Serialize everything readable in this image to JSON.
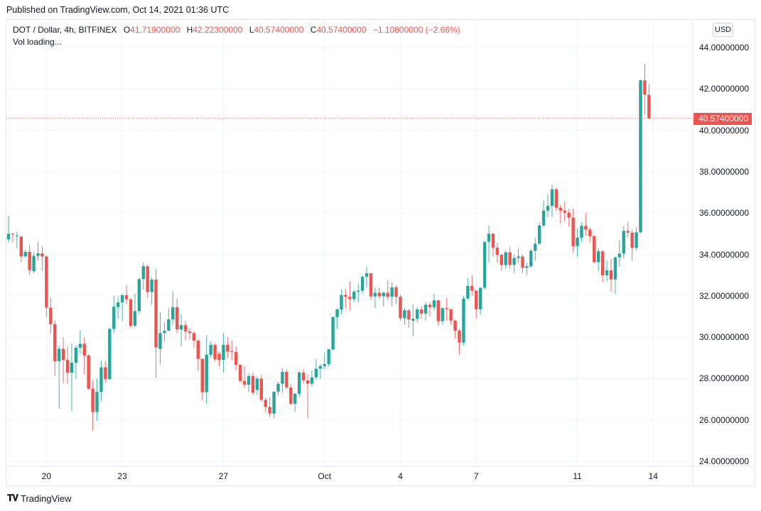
{
  "published": "Published on TradingView.com, Oct 14, 2021 01:36 UTC",
  "legend": {
    "symbol": "DOT / Dollar, 4h, BITFINEX",
    "o_label": "O",
    "o": "41.71900000",
    "h_label": "H",
    "h": "42.22300000",
    "l_label": "L",
    "l": "40.57400000",
    "c_label": "C",
    "c": "40.57400000",
    "change": "−1.10800000 (−2.66%)",
    "vol": "Vol loading..."
  },
  "currency_button": "USD",
  "last_price_label": "40.57400000",
  "footer": {
    "logo": "17",
    "brand": "TradingView"
  },
  "colors": {
    "up": "#26a69a",
    "down": "#ef5350",
    "grid": "#f0f3fa"
  },
  "chart_data": {
    "type": "candlestick",
    "interval": "4h",
    "first_candle_time": "2021-09-18 12:00",
    "ylim": [
      23.6,
      45.3
    ],
    "grid": true,
    "last_price": 40.574,
    "y_ticks": [
      "24.00000000",
      "26.00000000",
      "28.00000000",
      "30.00000000",
      "32.00000000",
      "34.00000000",
      "36.00000000",
      "38.00000000",
      "40.00000000",
      "42.00000000",
      "44.00000000"
    ],
    "x_ticks": [
      {
        "label": "20",
        "time": "2021-09-20 00:00"
      },
      {
        "label": "23",
        "time": "2021-09-23 00:00"
      },
      {
        "label": "27",
        "time": "2021-09-27 00:00"
      },
      {
        "label": "Oct",
        "time": "2021-10-01 00:00"
      },
      {
        "label": "4",
        "time": "2021-10-04 00:00"
      },
      {
        "label": "7",
        "time": "2021-10-07 00:00"
      },
      {
        "label": "11",
        "time": "2021-10-11 00:00"
      },
      {
        "label": "14",
        "time": "2021-10-14 00:00"
      }
    ],
    "ohlc": [
      [
        34.73,
        35.87,
        34.56,
        35.0
      ],
      [
        35.0,
        35.05,
        34.58,
        34.98
      ],
      [
        34.9,
        35.1,
        34.3,
        34.92
      ],
      [
        34.86,
        34.9,
        33.63,
        33.91
      ],
      [
        33.91,
        34.22,
        33.85,
        34.12
      ],
      [
        34.12,
        34.46,
        33.02,
        33.24
      ],
      [
        33.19,
        34.12,
        33.08,
        33.93
      ],
      [
        33.93,
        34.6,
        33.7,
        34.05
      ],
      [
        34.05,
        34.4,
        33.2,
        33.9
      ],
      [
        33.9,
        33.95,
        30.97,
        31.43
      ],
      [
        31.43,
        31.9,
        30.17,
        30.63
      ],
      [
        30.63,
        30.81,
        28.15,
        28.84
      ],
      [
        28.84,
        29.6,
        26.55,
        29.44
      ],
      [
        29.44,
        30.0,
        27.77,
        28.9
      ],
      [
        28.9,
        29.55,
        27.75,
        28.28
      ],
      [
        28.28,
        29.7,
        26.43,
        28.77
      ],
      [
        28.77,
        29.6,
        28.0,
        29.49
      ],
      [
        29.49,
        30.35,
        29.2,
        29.68
      ],
      [
        29.68,
        30.0,
        28.2,
        29.11
      ],
      [
        29.11,
        29.2,
        27.45,
        27.51
      ],
      [
        27.51,
        27.9,
        25.49,
        26.38
      ],
      [
        26.38,
        28.0,
        25.95,
        27.35
      ],
      [
        27.35,
        28.85,
        26.9,
        28.54
      ],
      [
        28.54,
        28.85,
        27.8,
        27.97
      ],
      [
        27.97,
        30.45,
        27.93,
        30.4
      ],
      [
        30.4,
        32.0,
        30.2,
        31.47
      ],
      [
        31.45,
        31.97,
        30.9,
        31.68
      ],
      [
        31.68,
        32.1,
        30.78,
        32.03
      ],
      [
        32.03,
        32.52,
        31.6,
        31.83
      ],
      [
        31.83,
        31.9,
        30.43,
        30.55
      ],
      [
        30.55,
        32.1,
        30.5,
        31.26
      ],
      [
        31.26,
        32.87,
        31.1,
        32.81
      ],
      [
        32.81,
        33.6,
        32.3,
        33.43
      ],
      [
        33.43,
        33.5,
        31.9,
        32.18
      ],
      [
        32.18,
        32.9,
        31.55,
        32.78
      ],
      [
        32.78,
        33.3,
        28.03,
        29.51
      ],
      [
        29.43,
        31.2,
        28.7,
        30.2
      ],
      [
        30.2,
        30.73,
        29.78,
        30.31
      ],
      [
        30.31,
        31.4,
        30.3,
        30.86
      ],
      [
        30.86,
        32.21,
        30.6,
        31.45
      ],
      [
        31.45,
        31.87,
        30.2,
        30.37
      ],
      [
        30.37,
        31.1,
        29.55,
        30.58
      ],
      [
        30.58,
        30.8,
        29.85,
        30.28
      ],
      [
        30.28,
        30.45,
        29.9,
        30.2
      ],
      [
        30.2,
        30.3,
        29.5,
        29.83
      ],
      [
        29.83,
        29.9,
        28.37,
        28.95
      ],
      [
        28.95,
        29.0,
        26.95,
        27.34
      ],
      [
        27.34,
        30.1,
        26.78,
        29.15
      ],
      [
        29.15,
        29.8,
        29.0,
        29.63
      ],
      [
        29.63,
        29.7,
        28.85,
        28.93
      ],
      [
        29.2,
        29.3,
        28.6,
        28.9
      ],
      [
        28.9,
        30.2,
        28.3,
        29.63
      ],
      [
        29.63,
        30.0,
        29.0,
        29.3
      ],
      [
        29.32,
        29.85,
        28.9,
        29.28
      ],
      [
        29.28,
        29.55,
        28.4,
        28.66
      ],
      [
        28.66,
        28.7,
        27.8,
        27.89
      ],
      [
        27.89,
        28.6,
        27.55,
        27.7
      ],
      [
        27.7,
        28.25,
        27.35,
        28.12
      ],
      [
        28.12,
        28.3,
        27.2,
        27.32
      ],
      [
        27.45,
        28.1,
        27.2,
        28.0
      ],
      [
        28.0,
        28.2,
        26.9,
        26.97
      ],
      [
        26.97,
        27.1,
        26.37,
        26.63
      ],
      [
        26.63,
        27.1,
        26.12,
        26.31
      ],
      [
        26.31,
        27.37,
        26.1,
        27.37
      ],
      [
        27.37,
        27.85,
        27.2,
        27.75
      ],
      [
        27.75,
        28.5,
        27.3,
        28.32
      ],
      [
        28.32,
        28.45,
        27.5,
        27.57
      ],
      [
        27.57,
        27.75,
        26.75,
        26.78
      ],
      [
        26.78,
        27.3,
        26.4,
        27.26
      ],
      [
        27.26,
        28.35,
        27.1,
        28.29
      ],
      [
        28.29,
        28.45,
        27.75,
        27.91
      ],
      [
        27.91,
        28.2,
        26.08,
        27.75
      ],
      [
        27.75,
        28.4,
        27.6,
        28.06
      ],
      [
        28.06,
        28.95,
        27.95,
        28.48
      ],
      [
        28.48,
        28.7,
        28.0,
        28.6
      ],
      [
        28.6,
        29.25,
        28.45,
        28.7
      ],
      [
        28.7,
        29.45,
        28.6,
        29.41
      ],
      [
        29.41,
        31.0,
        29.35,
        30.97
      ],
      [
        30.97,
        31.4,
        30.4,
        31.34
      ],
      [
        31.34,
        32.3,
        31.1,
        32.04
      ],
      [
        32.04,
        32.3,
        31.4,
        31.95
      ],
      [
        31.95,
        32.7,
        31.3,
        31.84
      ],
      [
        31.84,
        32.3,
        31.7,
        32.2
      ],
      [
        32.2,
        32.6,
        31.7,
        32.25
      ],
      [
        32.25,
        32.97,
        32.1,
        32.92
      ],
      [
        32.92,
        33.4,
        32.4,
        33.09
      ],
      [
        33.09,
        33.1,
        31.8,
        31.97
      ],
      [
        31.97,
        32.4,
        31.4,
        32.15
      ],
      [
        32.15,
        32.4,
        31.85,
        31.98
      ],
      [
        31.98,
        32.2,
        31.5,
        32.15
      ],
      [
        32.15,
        32.75,
        31.8,
        31.95
      ],
      [
        31.95,
        32.65,
        31.5,
        32.41
      ],
      [
        32.41,
        32.5,
        31.6,
        31.95
      ],
      [
        31.95,
        32.05,
        30.8,
        30.92
      ],
      [
        30.92,
        31.4,
        30.6,
        31.3
      ],
      [
        31.3,
        31.35,
        30.45,
        30.86
      ],
      [
        30.8,
        31.6,
        30.06,
        30.89
      ],
      [
        30.89,
        31.45,
        30.7,
        31.34
      ],
      [
        31.34,
        31.5,
        30.9,
        31.14
      ],
      [
        31.14,
        31.7,
        30.8,
        31.57
      ],
      [
        31.57,
        31.7,
        31.0,
        31.45
      ],
      [
        31.45,
        32.1,
        31.3,
        31.78
      ],
      [
        31.78,
        31.8,
        30.55,
        30.77
      ],
      [
        30.77,
        31.45,
        30.6,
        31.4
      ],
      [
        31.4,
        31.9,
        30.8,
        31.35
      ],
      [
        31.35,
        31.4,
        30.6,
        30.8
      ],
      [
        30.8,
        30.85,
        29.95,
        30.31
      ],
      [
        30.31,
        30.4,
        29.15,
        29.74
      ],
      [
        29.74,
        32.0,
        29.6,
        31.87
      ],
      [
        31.87,
        32.85,
        31.8,
        32.48
      ],
      [
        32.48,
        33.0,
        32.0,
        32.25
      ],
      [
        32.25,
        32.3,
        30.9,
        31.35
      ],
      [
        31.35,
        32.4,
        31.1,
        32.39
      ],
      [
        32.39,
        34.65,
        32.3,
        34.61
      ],
      [
        34.61,
        35.4,
        33.6,
        35.0
      ],
      [
        35.0,
        35.05,
        33.9,
        34.33
      ],
      [
        34.33,
        34.55,
        33.6,
        33.98
      ],
      [
        33.98,
        34.05,
        33.2,
        33.49
      ],
      [
        33.49,
        34.2,
        33.3,
        34.1
      ],
      [
        34.1,
        34.35,
        33.3,
        33.5
      ],
      [
        33.5,
        34.0,
        33.1,
        33.83
      ],
      [
        33.83,
        34.3,
        33.6,
        33.9
      ],
      [
        33.9,
        34.0,
        33.1,
        33.35
      ],
      [
        33.35,
        33.6,
        33.0,
        33.43
      ],
      [
        33.43,
        34.25,
        33.35,
        34.18
      ],
      [
        34.18,
        34.8,
        33.7,
        34.52
      ],
      [
        34.52,
        35.55,
        34.45,
        35.4
      ],
      [
        35.4,
        36.6,
        35.3,
        36.12
      ],
      [
        36.12,
        36.9,
        35.8,
        36.35
      ],
      [
        36.35,
        37.4,
        35.8,
        37.15
      ],
      [
        37.15,
        37.25,
        36.1,
        36.26
      ],
      [
        36.26,
        36.4,
        35.5,
        36.12
      ],
      [
        36.12,
        36.55,
        35.6,
        36.02
      ],
      [
        36.02,
        36.2,
        35.35,
        35.78
      ],
      [
        35.78,
        36.2,
        34.1,
        34.4
      ],
      [
        34.4,
        35.25,
        33.9,
        34.81
      ],
      [
        34.81,
        35.55,
        34.6,
        35.38
      ],
      [
        35.38,
        36.0,
        34.9,
        35.2
      ],
      [
        35.2,
        35.3,
        34.6,
        34.88
      ],
      [
        34.88,
        34.95,
        33.55,
        33.63
      ],
      [
        33.63,
        34.3,
        33.2,
        34.15
      ],
      [
        34.15,
        34.2,
        32.65,
        32.99
      ],
      [
        32.99,
        33.7,
        32.7,
        33.23
      ],
      [
        33.23,
        33.8,
        32.2,
        32.79
      ],
      [
        32.79,
        33.9,
        32.1,
        33.86
      ],
      [
        33.86,
        34.7,
        33.4,
        34.04
      ],
      [
        34.04,
        35.35,
        33.8,
        35.14
      ],
      [
        35.14,
        35.6,
        34.8,
        35.05
      ],
      [
        35.05,
        35.2,
        33.7,
        34.32
      ],
      [
        34.32,
        35.3,
        34.2,
        35.07
      ],
      [
        35.07,
        42.45,
        35.0,
        42.42
      ],
      [
        42.42,
        43.21,
        40.75,
        41.72
      ],
      [
        41.719,
        42.223,
        40.574,
        40.574
      ]
    ]
  }
}
